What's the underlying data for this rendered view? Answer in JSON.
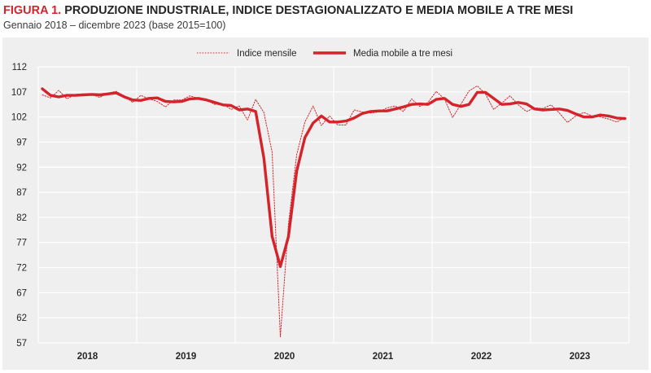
{
  "header": {
    "figure_label": "FIGURA 1.",
    "title": "PRODUZIONE INDUSTRIALE, INDICE DESTAGIONALIZZATO E MEDIA MOBILE A TRE MESI",
    "subtitle": "Gennaio 2018 – dicembre 2023 (base 2015=100)"
  },
  "colors": {
    "accent": "#d5232b",
    "grid": "#ffffff",
    "panel": "#efefef"
  },
  "chart_data": {
    "type": "line",
    "title": "PRODUZIONE INDUSTRIALE, INDICE DESTAGIONALIZZATO E MEDIA MOBILE A TRE MESI",
    "subtitle": "Gennaio 2018 – dicembre 2023 (base 2015=100)",
    "xlabel": "",
    "ylabel": "",
    "ylim": [
      57,
      112
    ],
    "yticks": [
      57,
      62,
      67,
      72,
      77,
      82,
      87,
      92,
      97,
      102,
      107,
      112
    ],
    "years": [
      "2018",
      "2019",
      "2020",
      "2021",
      "2022",
      "2023"
    ],
    "grid": true,
    "legend_position": "top-center",
    "series": [
      {
        "name": "Indice mensile",
        "style": "dotted",
        "color": "#d5232b",
        "values": [
          106.4,
          105.8,
          107.3,
          105.6,
          106.5,
          106.6,
          106.5,
          105.9,
          106.8,
          107.1,
          106.2,
          104.9,
          106.3,
          105.6,
          105.1,
          104.0,
          105.4,
          105.4,
          106.2,
          105.7,
          105.4,
          104.5,
          104.6,
          103.5,
          104.2,
          101.4,
          105.5,
          102.9,
          95.0,
          58.2,
          80.7,
          94.5,
          101.0,
          104.2,
          100.3,
          102.2,
          100.4,
          100.4,
          103.4,
          103.0,
          102.8,
          103.0,
          103.8,
          104.2,
          103.1,
          105.6,
          104.1,
          104.9,
          107.1,
          105.6,
          101.9,
          104.5,
          107.2,
          108.2,
          106.6,
          103.5,
          104.8,
          106.2,
          104.4,
          103.1,
          103.8,
          103.7,
          104.4,
          102.8,
          100.9,
          102.2,
          102.9,
          102.2,
          102.0,
          101.6,
          101.0,
          101.9
        ]
      },
      {
        "name": "Media mobile a tre mesi",
        "style": "solid",
        "color": "#d5232b",
        "values": [
          107.6,
          106.3,
          106.0,
          106.3,
          106.3,
          106.4,
          106.5,
          106.4,
          106.6,
          106.8,
          106.0,
          105.4,
          105.3,
          105.7,
          105.8,
          105.1,
          105.0,
          105.1,
          105.6,
          105.7,
          105.4,
          104.9,
          104.4,
          104.3,
          103.4,
          103.6,
          103.1,
          93.8,
          78.2,
          72.2,
          78.2,
          91.2,
          97.9,
          100.8,
          102.2,
          101.0,
          101.0,
          101.2,
          101.8,
          102.7,
          103.1,
          103.2,
          103.2,
          103.6,
          104.0,
          104.5,
          104.6,
          104.5,
          105.5,
          105.7,
          104.5,
          104.1,
          104.5,
          106.9,
          106.9,
          105.7,
          104.5,
          104.6,
          104.9,
          104.6,
          103.6,
          103.4,
          103.5,
          103.6,
          103.3,
          102.6,
          102.0,
          102.0,
          102.4,
          102.2,
          101.8,
          101.7
        ]
      }
    ]
  }
}
